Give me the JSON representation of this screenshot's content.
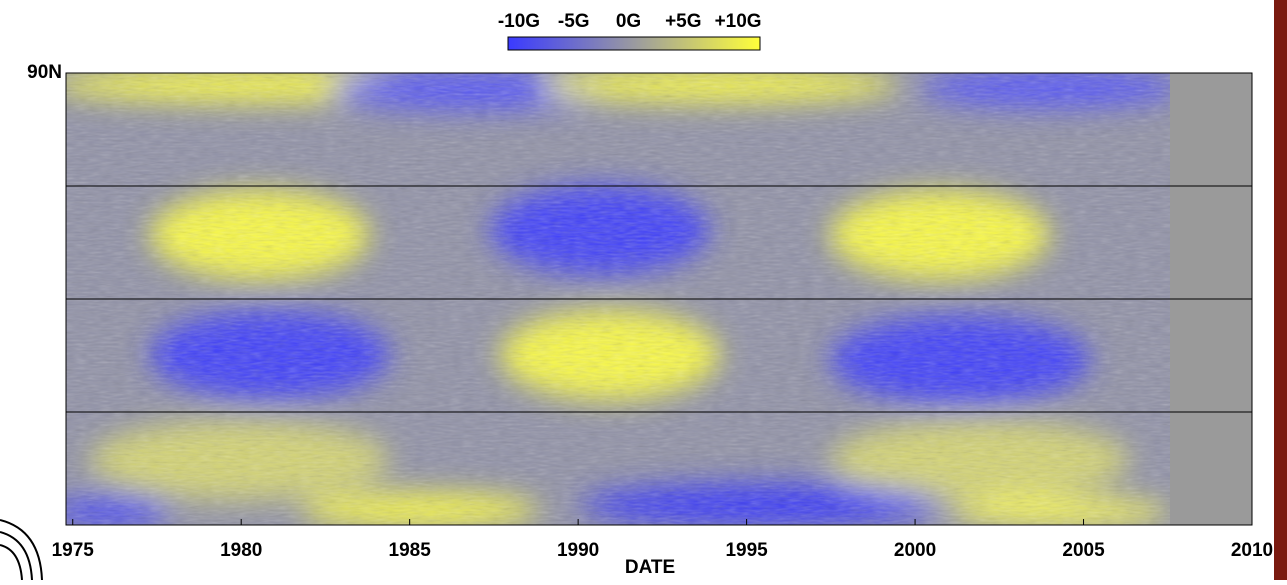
{
  "chart_data": {
    "type": "heatmap",
    "x_label": "DATE",
    "xlim": [
      1974.8,
      2010
    ],
    "xticks": [
      1975,
      1980,
      1985,
      1990,
      1995,
      2000,
      2005,
      2010
    ],
    "ylim": [
      -90,
      90
    ],
    "yticks": [
      {
        "value": 90,
        "label": "90N"
      }
    ],
    "hlines": [
      45,
      0,
      -45
    ],
    "colorbar": {
      "clim": [
        -11,
        12
      ],
      "colors": [
        "#3a3aff",
        "#9a9aa0",
        "#ffff3a"
      ],
      "ticks": [
        {
          "value": -10,
          "label": "-10G"
        },
        {
          "value": -5,
          "label": "-5G"
        },
        {
          "value": 0,
          "label": "0G"
        },
        {
          "value": 5,
          "label": "+5G"
        },
        {
          "value": 10,
          "label": "+10G"
        }
      ]
    }
  }
}
